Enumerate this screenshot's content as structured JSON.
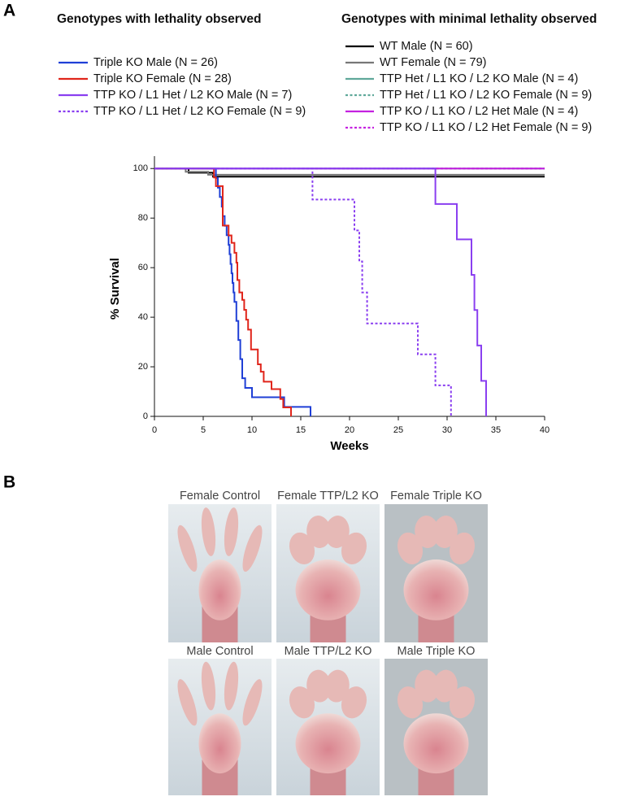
{
  "panel_labels": [
    "A",
    "B"
  ],
  "chart_data": {
    "type": "line",
    "step": true,
    "xlabel": "Weeks",
    "ylabel": "% Survival",
    "xlim": [
      0,
      40
    ],
    "xticks": [
      0,
      5,
      10,
      15,
      20,
      25,
      30,
      35,
      40
    ],
    "ylim": [
      0,
      105
    ],
    "yticks": [
      0,
      20,
      40,
      60,
      80,
      100
    ],
    "series_groups": [
      {
        "title": "Genotypes with lethality observed",
        "series": [
          {
            "name": "Triple KO Male (N = 26)",
            "color": "#1f3fd6",
            "dash": false,
            "x": [
              0,
              6.3,
              6.5,
              6.7,
              6.9,
              7.0,
              7.2,
              7.4,
              7.6,
              7.7,
              7.8,
              7.9,
              8.0,
              8.1,
              8.2,
              8.4,
              8.6,
              8.8,
              9.0,
              9.3,
              10.0,
              13.3,
              16.0
            ],
            "values": [
              100,
              96.2,
              92.3,
              88.5,
              84.6,
              80.8,
              76.9,
              73.1,
              69.2,
              65.4,
              61.5,
              57.7,
              53.8,
              50,
              46.2,
              38.5,
              30.8,
              23.1,
              15.4,
              11.5,
              7.7,
              3.8,
              0
            ]
          },
          {
            "name": "Triple KO Female (N = 28)",
            "color": "#e0251b",
            "dash": false,
            "x": [
              0,
              6.1,
              6.3,
              7.0,
              7.6,
              7.9,
              8.2,
              8.4,
              8.5,
              8.7,
              9.0,
              9.2,
              9.4,
              9.6,
              9.9,
              10.6,
              10.9,
              11.2,
              12.0,
              12.9,
              13.2,
              14.0
            ],
            "values": [
              100,
              96.4,
              92.9,
              77,
              73,
              70,
              66,
              62,
              55,
              50,
              47,
              43,
              39,
              35,
              27,
              21,
              18,
              14,
              11,
              7,
              3.6,
              0
            ]
          },
          {
            "name": "TTP KO / L1 Het / L2 KO Male (N = 7)",
            "color": "#8a3ff0",
            "dash": false,
            "x": [
              0,
              28.8,
              31.0,
              32.5,
              32.8,
              33.1,
              33.5,
              34.0
            ],
            "values": [
              100,
              85.7,
              71.4,
              57.1,
              42.9,
              28.6,
              14.3,
              0
            ]
          },
          {
            "name": "TTP KO / L1 Het / L2 KO Female (N = 9)",
            "color": "#8a3ff0",
            "dash": true,
            "x": [
              0,
              16.2,
              20.5,
              21.0,
              21.3,
              21.8,
              27.0,
              28.8,
              30.4
            ],
            "values": [
              100,
              87.5,
              75,
              62.5,
              50,
              37.5,
              25,
              12.5,
              0
            ]
          }
        ]
      },
      {
        "title": "Genotypes with minimal lethality observed",
        "series": [
          {
            "name": "WT Male (N = 60)",
            "color": "#000000",
            "dash": false,
            "x": [
              0,
              3.5,
              6.0,
              40
            ],
            "values": [
              100,
              98.3,
              96.7,
              96.7
            ]
          },
          {
            "name": "WT Female (N = 79)",
            "color": "#777777",
            "dash": false,
            "x": [
              0,
              3.2,
              5.5,
              40
            ],
            "values": [
              100,
              98.7,
              97.5,
              97.5
            ]
          },
          {
            "name": "TTP Het / L1 KO / L2 KO Male (N = 4)",
            "color": "#5fa89a",
            "dash": false,
            "x": [
              0,
              40
            ],
            "values": [
              100,
              100
            ]
          },
          {
            "name": "TTP Het / L1 KO / L2 KO Female (N = 9)",
            "color": "#5fa89a",
            "dash": true,
            "x": [
              0,
              40
            ],
            "values": [
              100,
              100
            ]
          },
          {
            "name": "TTP KO / L1 KO / L2 Het Male (N = 4)",
            "color": "#c421e0",
            "dash": false,
            "x": [
              0,
              40
            ],
            "values": [
              100,
              100
            ]
          },
          {
            "name": "TTP KO / L1 KO / L2 Het Female (N = 9)",
            "color": "#c421e0",
            "dash": true,
            "x": [
              0,
              40
            ],
            "values": [
              100,
              100
            ]
          }
        ]
      }
    ]
  },
  "photos": {
    "captions": [
      "Female Control",
      "Female TTP/L2 KO",
      "Female Triple KO",
      "Male Control",
      "Male TTP/L2 KO",
      "Male Triple KO"
    ]
  }
}
